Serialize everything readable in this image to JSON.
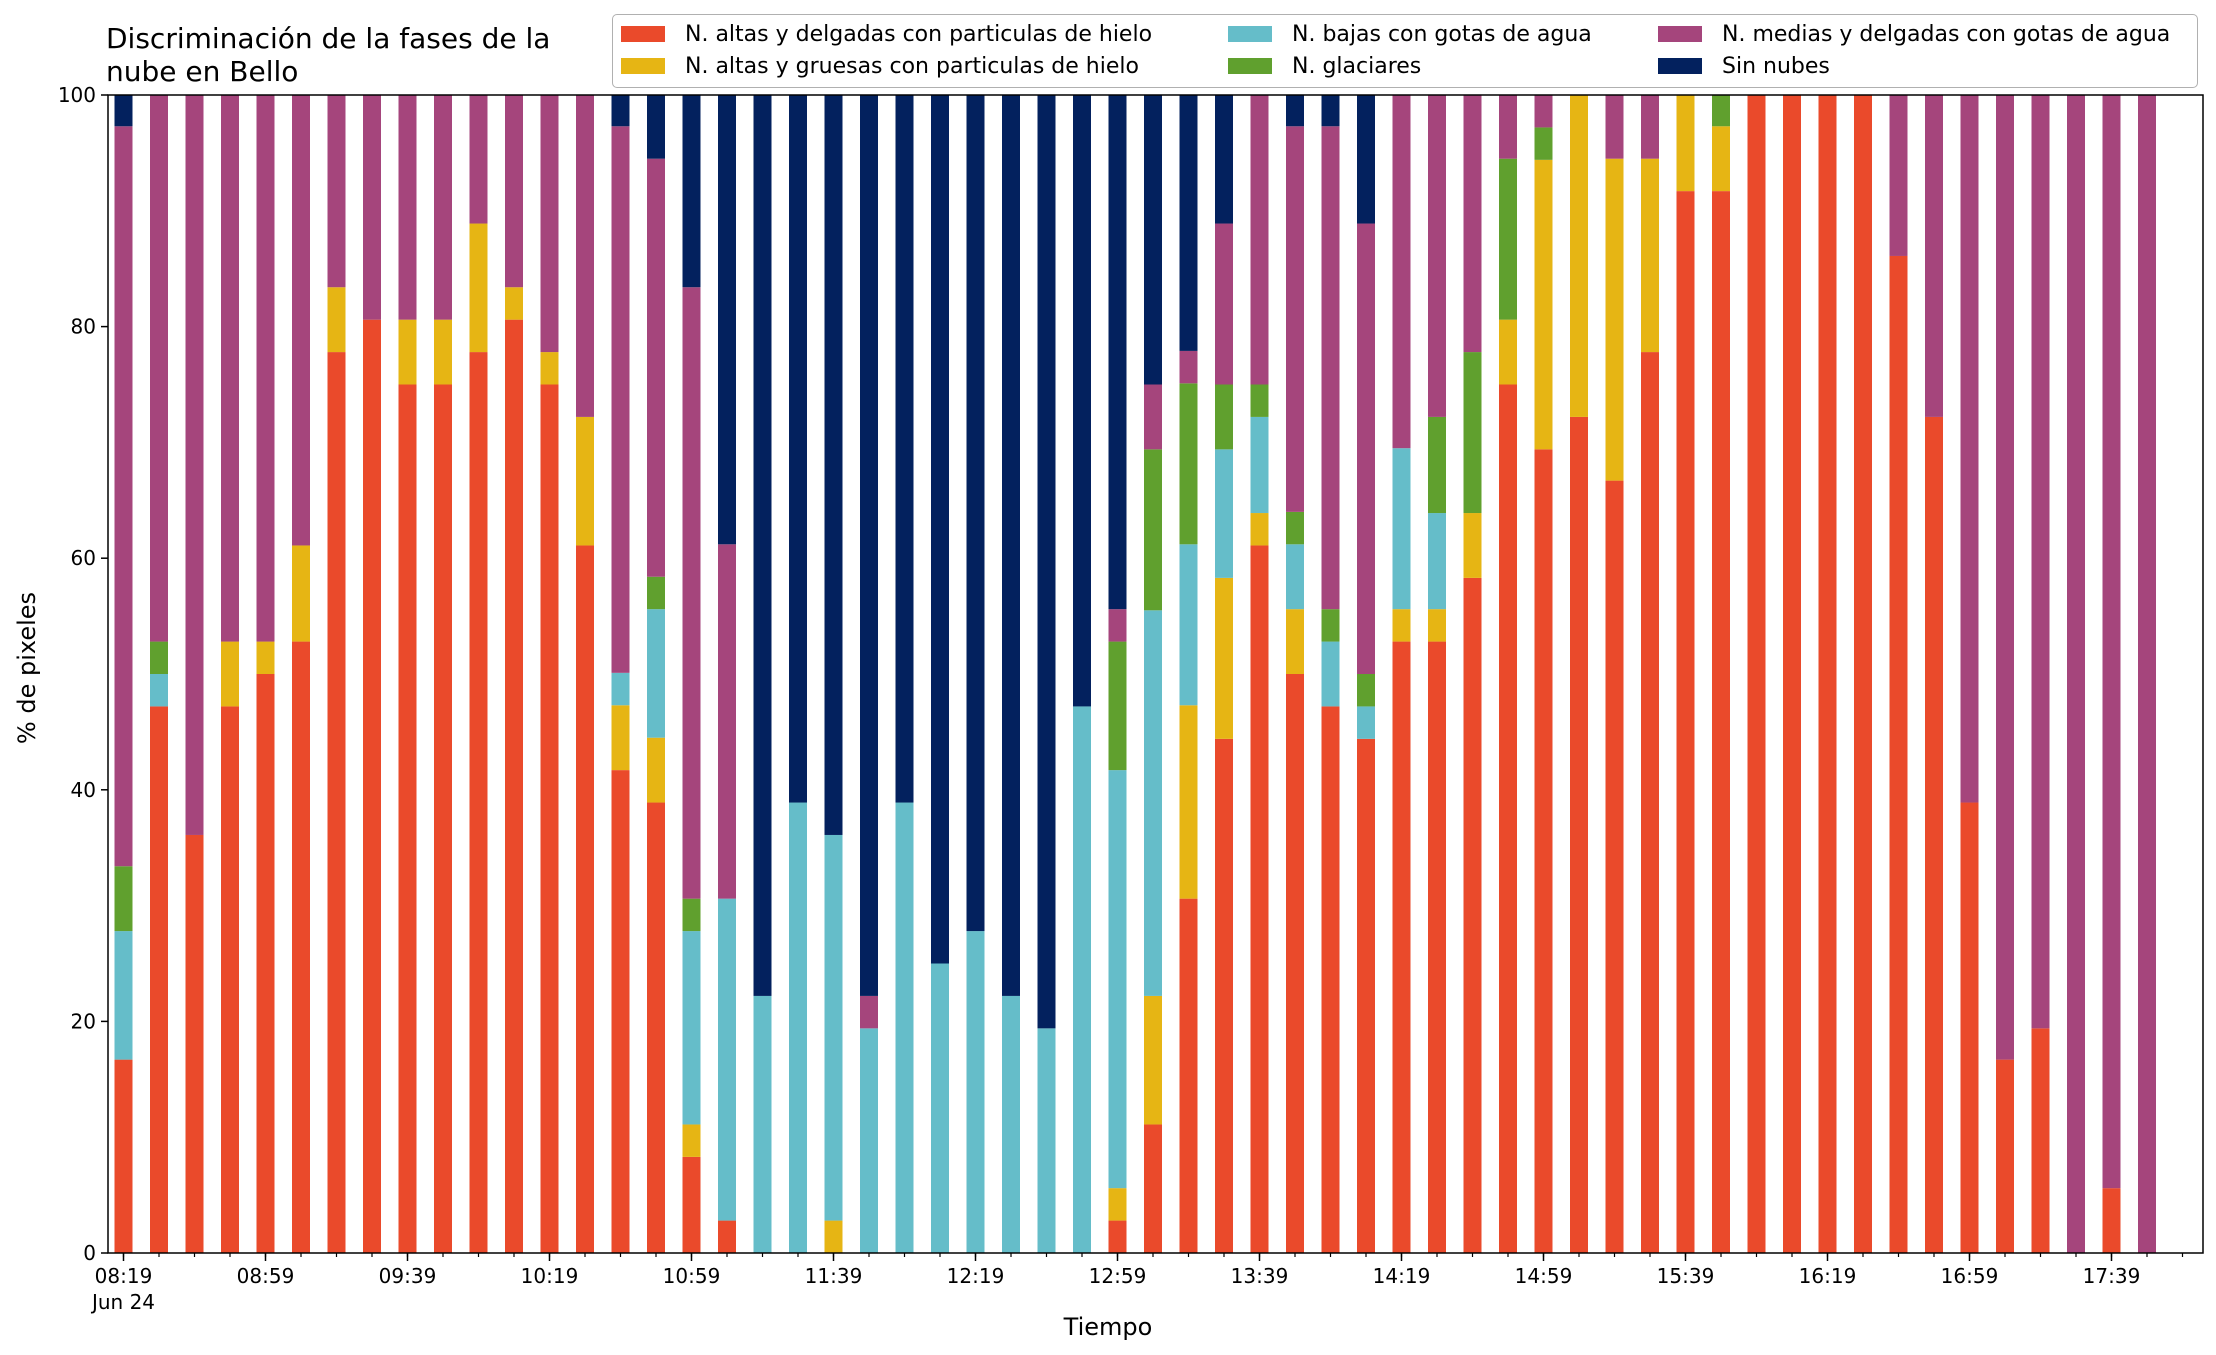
{
  "chart_data": {
    "type": "bar",
    "stacked": true,
    "title": "Discriminación de la fases de la\nnube en Bello",
    "xlabel": "Tiempo",
    "ylabel": "% de pixeles",
    "ylim": [
      0,
      100
    ],
    "yticks": [
      0,
      20,
      40,
      60,
      80,
      100
    ],
    "grid": false,
    "legend_position": "top-right",
    "x_tick_labels": [
      "08:19",
      "08:59",
      "09:39",
      "10:19",
      "10:59",
      "11:39",
      "12:19",
      "12:59",
      "13:39",
      "14:19",
      "14:59",
      "15:39",
      "16:19",
      "16:59",
      "17:39"
    ],
    "x_date_label": "Jun 24",
    "categories": [
      "08:19",
      "08:29",
      "08:39",
      "08:49",
      "08:59",
      "09:09",
      "09:19",
      "09:29",
      "09:39",
      "09:49",
      "09:59",
      "10:09",
      "10:19",
      "10:29",
      "10:39",
      "10:49",
      "10:59",
      "11:09",
      "11:19",
      "11:29",
      "11:39",
      "11:49",
      "11:59",
      "12:09",
      "12:19",
      "12:29",
      "12:39",
      "12:49",
      "12:59",
      "13:09",
      "13:19",
      "13:29",
      "13:39",
      "13:49",
      "13:59",
      "14:09",
      "14:19",
      "14:29",
      "14:39",
      "14:49",
      "14:59",
      "15:09",
      "15:19",
      "15:29",
      "15:39",
      "15:49",
      "15:59",
      "16:09",
      "16:19",
      "16:29",
      "16:39",
      "16:49",
      "16:59",
      "17:09",
      "17:19",
      "17:29",
      "17:39",
      "17:49"
    ],
    "series": [
      {
        "name": "N. altas y delgadas con particulas de hielo",
        "color": "#ea4a2b",
        "values": [
          16.7,
          47.2,
          36.1,
          47.2,
          50.0,
          52.8,
          77.8,
          80.6,
          75.0,
          75.0,
          77.8,
          80.6,
          75.0,
          61.1,
          41.7,
          38.9,
          8.3,
          2.8,
          0,
          0,
          0,
          0,
          0,
          0,
          0,
          0,
          0,
          0,
          2.8,
          11.1,
          30.6,
          44.4,
          61.1,
          50.0,
          47.2,
          44.4,
          52.8,
          52.8,
          58.3,
          75.0,
          69.4,
          72.2,
          66.7,
          77.8,
          91.7,
          91.7,
          100,
          100,
          100,
          100,
          86.1,
          72.2,
          38.9,
          16.7,
          19.4,
          0,
          5.6,
          0
        ]
      },
      {
        "name": "N. altas y gruesas con particulas de hielo",
        "color": "#e6b514",
        "values": [
          0,
          0,
          0,
          5.6,
          2.8,
          8.3,
          5.6,
          0,
          5.6,
          5.6,
          11.1,
          2.8,
          2.8,
          11.1,
          5.6,
          5.6,
          2.8,
          0,
          0,
          0,
          2.8,
          0,
          0,
          0,
          0,
          0,
          0,
          0,
          2.8,
          11.1,
          16.7,
          13.9,
          2.8,
          5.6,
          0,
          0,
          2.8,
          2.8,
          5.6,
          5.6,
          25.0,
          27.8,
          27.8,
          16.7,
          8.3,
          5.6,
          0,
          0,
          0,
          0,
          0,
          0,
          0,
          0,
          0,
          0,
          0,
          0
        ]
      },
      {
        "name": "N. bajas con gotas de agua",
        "color": "#65bdc9",
        "values": [
          11.1,
          2.8,
          0,
          0,
          0,
          0,
          0,
          0,
          0,
          0,
          0,
          0,
          0,
          0,
          2.8,
          11.1,
          16.7,
          27.8,
          22.2,
          38.9,
          33.3,
          19.4,
          38.9,
          25.0,
          27.8,
          22.2,
          19.4,
          47.2,
          36.1,
          33.3,
          13.9,
          11.1,
          8.3,
          5.6,
          5.6,
          2.8,
          13.9,
          8.3,
          0,
          0,
          0,
          0,
          0,
          0,
          0,
          0,
          0,
          0,
          0,
          0,
          0,
          0,
          0,
          0,
          0,
          0,
          0,
          0
        ]
      },
      {
        "name": "N. glaciares",
        "color": "#60a02e",
        "values": [
          5.6,
          2.8,
          0,
          0,
          0,
          0,
          0,
          0,
          0,
          0,
          0,
          0,
          0,
          0,
          0,
          2.8,
          2.8,
          0,
          0,
          0,
          0,
          0,
          0,
          0,
          0,
          0,
          0,
          0,
          11.1,
          13.9,
          13.9,
          5.6,
          2.8,
          2.8,
          2.8,
          2.8,
          0,
          8.3,
          13.9,
          13.9,
          2.8,
          0,
          0,
          0,
          0,
          2.8,
          0,
          0,
          0,
          0,
          0,
          0,
          0,
          0,
          0,
          0,
          0,
          0
        ]
      },
      {
        "name": "N. medias y delgadas con gotas de agua",
        "color": "#a5457c",
        "values": [
          63.9,
          47.2,
          63.9,
          47.2,
          47.2,
          38.9,
          16.7,
          19.4,
          19.4,
          19.4,
          11.1,
          16.7,
          22.2,
          27.8,
          47.2,
          36.1,
          52.8,
          30.6,
          0,
          0,
          0,
          2.8,
          0,
          0,
          0,
          0,
          0,
          0,
          2.8,
          5.6,
          2.8,
          13.9,
          25.0,
          33.3,
          41.7,
          38.9,
          30.6,
          27.8,
          22.2,
          5.6,
          2.8,
          0,
          5.6,
          5.6,
          0,
          0,
          0,
          0,
          0,
          0,
          13.9,
          27.8,
          61.1,
          83.3,
          80.6,
          100,
          94.4,
          100
        ]
      },
      {
        "name": "Sin nubes",
        "color": "#03215e",
        "values": [
          2.8,
          0,
          0,
          0,
          0,
          0,
          0,
          0,
          0,
          0,
          0,
          0,
          0,
          0,
          2.8,
          5.6,
          16.7,
          38.9,
          77.8,
          61.1,
          63.9,
          77.8,
          61.1,
          75.0,
          72.2,
          77.8,
          80.6,
          52.8,
          44.4,
          25.0,
          22.2,
          11.1,
          0,
          2.8,
          2.8,
          11.1,
          0,
          0,
          0,
          0,
          0,
          0,
          0,
          0,
          0,
          0,
          0,
          0,
          0,
          0,
          0,
          0,
          0,
          0,
          0,
          0,
          0,
          0
        ]
      }
    ]
  }
}
